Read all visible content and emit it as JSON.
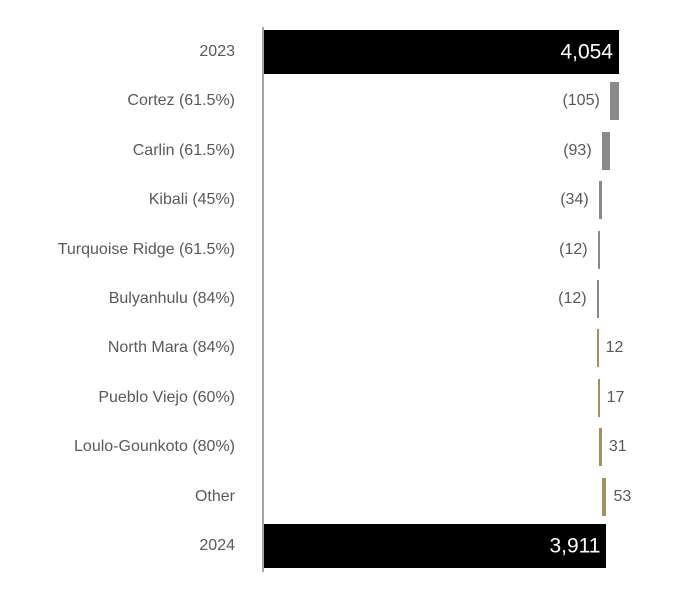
{
  "chart_data": {
    "type": "bar",
    "subtype": "horizontal-waterfall",
    "title": "",
    "xlabel": "",
    "ylabel": "",
    "xlim": [
      0,
      4054
    ],
    "grid": false,
    "legend": false,
    "orientation": "horizontal",
    "rows": [
      {
        "label": "2023",
        "value": 4054,
        "display": "4,054",
        "kind": "total"
      },
      {
        "label": "Cortez (61.5%)",
        "value": -105,
        "display": "(105)",
        "kind": "decrease"
      },
      {
        "label": "Carlin (61.5%)",
        "value": -93,
        "display": "(93)",
        "kind": "decrease"
      },
      {
        "label": "Kibali (45%)",
        "value": -34,
        "display": "(34)",
        "kind": "decrease"
      },
      {
        "label": "Turquoise Ridge (61.5%)",
        "value": -12,
        "display": "(12)",
        "kind": "decrease"
      },
      {
        "label": "Bulyanhulu (84%)",
        "value": -12,
        "display": "(12)",
        "kind": "decrease"
      },
      {
        "label": "North Mara (84%)",
        "value": 12,
        "display": "12",
        "kind": "increase"
      },
      {
        "label": "Pueblo Viejo (60%)",
        "value": 17,
        "display": "17",
        "kind": "increase"
      },
      {
        "label": "Loulo-Gounkoto (80%)",
        "value": 31,
        "display": "31",
        "kind": "increase"
      },
      {
        "label": "Other",
        "value": 53,
        "display": "53",
        "kind": "increase"
      },
      {
        "label": "2024",
        "value": 3911,
        "display": "3,911",
        "kind": "total"
      }
    ],
    "colors": {
      "total": "#000000",
      "decrease": "#8a8a8a",
      "increase": "#a4925c",
      "axis": "#a6a6a6",
      "label_text": "#595959",
      "value_text": "#595959",
      "total_value_text": "#ffffff"
    }
  }
}
